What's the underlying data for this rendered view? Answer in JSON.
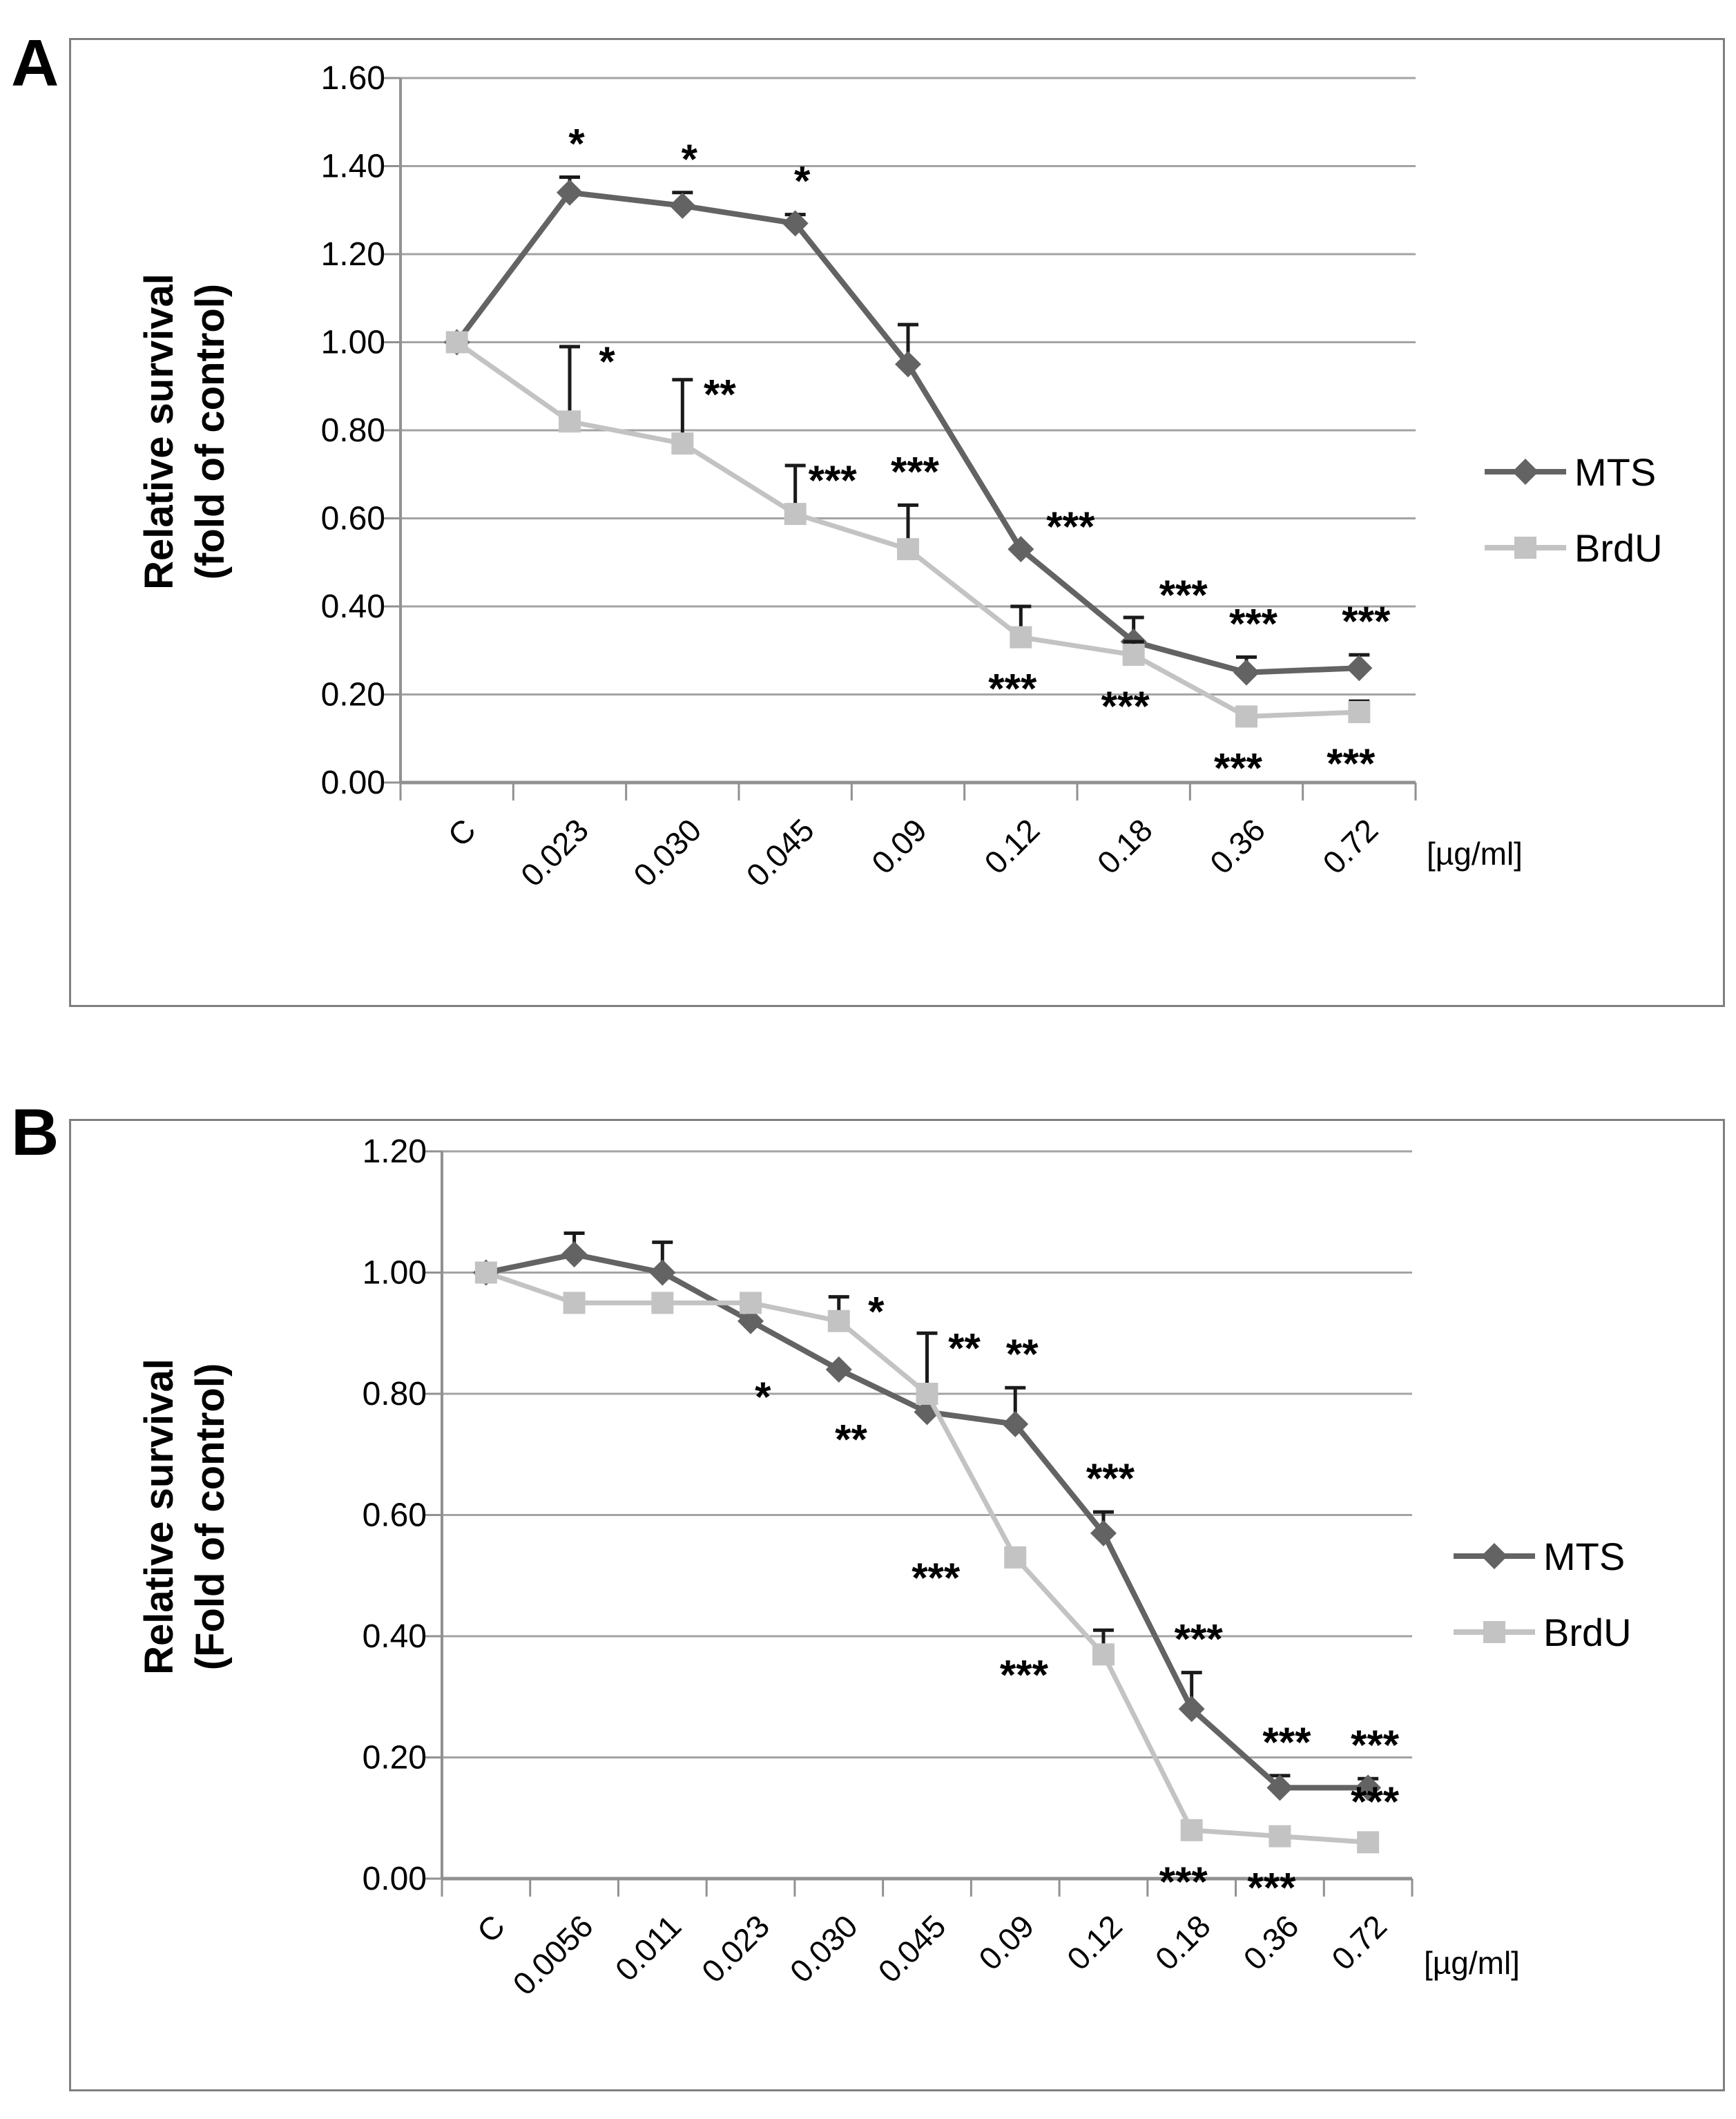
{
  "figure": {
    "background": "#ffffff"
  },
  "panels": [
    {
      "letter": "A"
    },
    {
      "letter": "B"
    }
  ],
  "colors": {
    "mts": "#636363",
    "brdu": "#c3c3c3",
    "grid": "#a3a3a3",
    "axis": "#919191",
    "border": "#7f7f7f",
    "error_bar": "#1a1a1a",
    "text": "#000000"
  },
  "chart_data": [
    {
      "panel": "A",
      "type": "line",
      "ylabel_lines": [
        "Relative survival",
        "(fold of control)"
      ],
      "unit_label": "[µg/ml]",
      "categories": [
        "C",
        "0.023",
        "0.030",
        "0.045",
        "0.09",
        "0.12",
        "0.18",
        "0.36",
        "0.72"
      ],
      "yticks": [
        "1.60",
        "1.40",
        "1.20",
        "1.00",
        "0.80",
        "0.60",
        "0.40",
        "0.20",
        "0.00"
      ],
      "ylim": [
        0,
        1.6
      ],
      "ytick_step": 0.2,
      "grid": true,
      "legend_position": "right",
      "series": [
        {
          "name": "MTS",
          "marker": "diamond",
          "values": [
            1.0,
            1.34,
            1.31,
            1.27,
            0.95,
            0.53,
            0.32,
            0.25,
            0.26
          ],
          "err": [
            0,
            0.035,
            0.03,
            0.02,
            0.09,
            0,
            0.055,
            0.035,
            0.03
          ],
          "sig": [
            "",
            "*",
            "*",
            "*",
            "",
            "***",
            "***",
            "***",
            "***"
          ],
          "sig_pos": [
            "",
            "above",
            "above",
            "above",
            "",
            "above-right",
            "above-right",
            "above",
            "above"
          ]
        },
        {
          "name": "BrdU",
          "marker": "square",
          "values": [
            1.0,
            0.82,
            0.77,
            0.61,
            0.53,
            0.33,
            0.29,
            0.15,
            0.16
          ],
          "err": [
            0,
            0.17,
            0.145,
            0.11,
            0.1,
            0.07,
            0.03,
            0,
            0.025
          ],
          "sig": [
            "",
            "*",
            "**",
            "***",
            "***",
            "***",
            "***",
            "***",
            "***"
          ],
          "sig_pos": [
            "",
            "right",
            "right",
            "right",
            "above",
            "below",
            "below",
            "below",
            "below"
          ]
        }
      ]
    },
    {
      "panel": "B",
      "type": "line",
      "ylabel_lines": [
        "Relative survival",
        "(Fold of control)"
      ],
      "unit_label": "[µg/ml]",
      "categories": [
        "C",
        "0.0056",
        "0.011",
        "0.023",
        "0.030",
        "0.045",
        "0.09",
        "0.12",
        "0.18",
        "0.36",
        "0.72"
      ],
      "yticks": [
        "1.20",
        "1.00",
        "0.80",
        "0.60",
        "0.40",
        "0.20",
        "0.00"
      ],
      "ylim": [
        0,
        1.2
      ],
      "ytick_step": 0.2,
      "grid": true,
      "legend_position": "right",
      "series": [
        {
          "name": "MTS",
          "marker": "diamond",
          "values": [
            1.0,
            1.03,
            1.0,
            0.92,
            0.84,
            0.77,
            0.75,
            0.57,
            0.28,
            0.15,
            0.15
          ],
          "err": [
            0,
            0.035,
            0.05,
            0,
            0,
            0,
            0.06,
            0.035,
            0.06,
            0.02,
            0.015
          ],
          "sig": [
            "",
            "",
            "",
            "",
            "*",
            "**",
            "**",
            "***",
            "***",
            "***",
            "***"
          ],
          "sig_pos": [
            "",
            "",
            "",
            "",
            "below-left",
            "below-left",
            "above",
            "above",
            "above",
            "above",
            "above"
          ]
        },
        {
          "name": "BrdU",
          "marker": "square",
          "values": [
            1.0,
            0.95,
            0.95,
            0.95,
            0.92,
            0.8,
            0.53,
            0.37,
            0.08,
            0.07,
            0.06
          ],
          "err": [
            0,
            0,
            0,
            0,
            0.04,
            0.1,
            0,
            0.04,
            0.012,
            0,
            0.012
          ],
          "sig": [
            "",
            "",
            "",
            "",
            "*",
            "**",
            "***",
            "***",
            "***",
            "***",
            "***"
          ],
          "sig_pos": [
            "",
            "",
            "",
            "",
            "right",
            "right",
            "left-below",
            "left-below",
            "below",
            "below",
            "above"
          ]
        }
      ]
    }
  ]
}
